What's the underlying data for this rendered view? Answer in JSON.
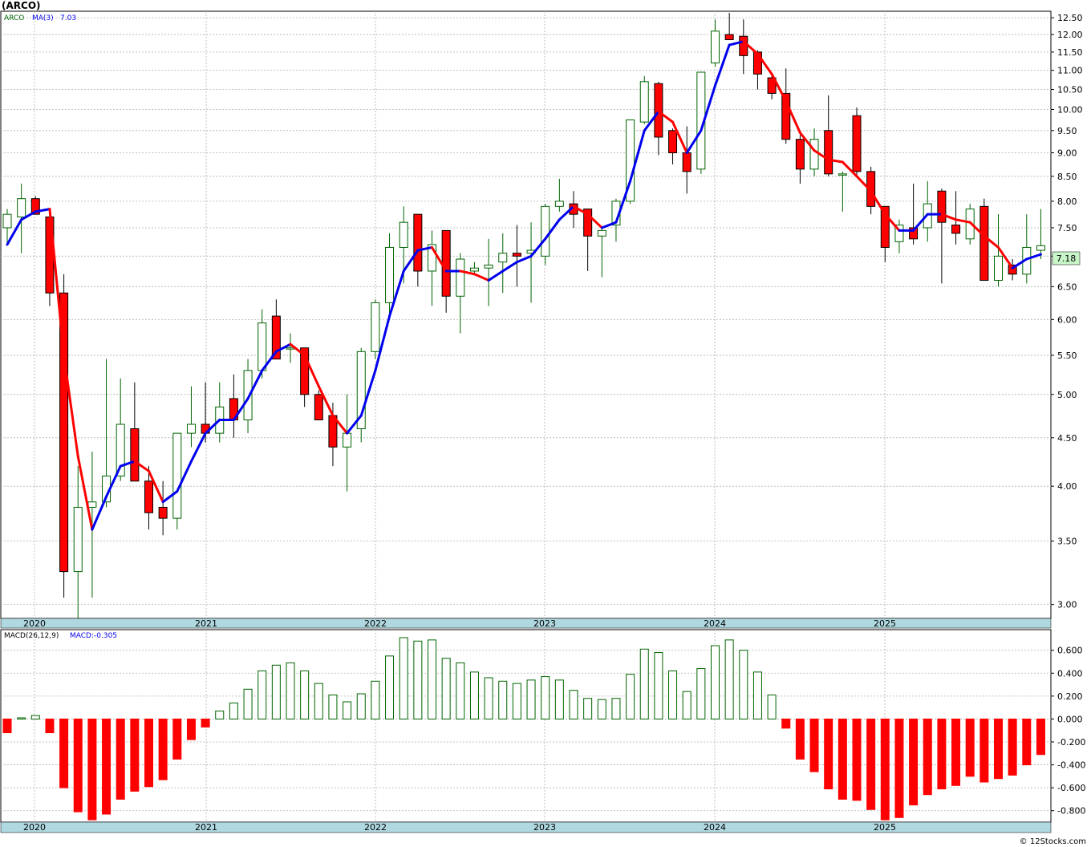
{
  "page": {
    "title": "(ARCO)",
    "footer": "© 12Stocks.com"
  },
  "colors": {
    "up": "#006400",
    "down": "#ff0000",
    "ma_up": "#0000ee",
    "ma_down": "#ff0000",
    "grid": "#b0b0b0",
    "axis_band": "#b0d8e0",
    "last_price_bg": "#c8f5c8"
  },
  "chart_data": [
    {
      "type": "candlestick",
      "ticker": "ARCO",
      "indicator_label": "MA(3)",
      "indicator_value": "7.03",
      "scale": "log",
      "ylim": [
        2.9,
        12.7
      ],
      "grid": true,
      "yticks": [
        "3.00",
        "3.50",
        "4.00",
        "4.50",
        "5.00",
        "5.50",
        "6.00",
        "6.50",
        "7.00",
        "7.50",
        "8.00",
        "8.50",
        "9.00",
        "9.50",
        "10.00",
        "10.50",
        "11.00",
        "11.50",
        "12.00",
        "12.50"
      ],
      "xticks": [
        "2020",
        "2021",
        "2022",
        "2023",
        "2024",
        "2025"
      ],
      "last_price": "7.18",
      "candles": [
        [
          7.5,
          7.85,
          7.2,
          7.75
        ],
        [
          7.7,
          8.35,
          7.05,
          8.05
        ],
        [
          8.05,
          8.1,
          7.75,
          7.75
        ],
        [
          7.7,
          7.8,
          6.2,
          6.4
        ],
        [
          6.4,
          6.7,
          3.05,
          3.25
        ],
        [
          3.25,
          4.2,
          2.9,
          3.8
        ],
        [
          3.8,
          4.35,
          3.05,
          3.85
        ],
        [
          3.85,
          5.45,
          3.8,
          4.1
        ],
        [
          4.1,
          5.2,
          4.05,
          4.65
        ],
        [
          4.6,
          5.15,
          4.05,
          4.05
        ],
        [
          4.05,
          4.2,
          3.6,
          3.75
        ],
        [
          3.8,
          4.05,
          3.55,
          3.7
        ],
        [
          3.7,
          4.55,
          3.6,
          4.55
        ],
        [
          4.55,
          5.1,
          4.4,
          4.65
        ],
        [
          4.65,
          5.15,
          4.45,
          4.55
        ],
        [
          4.55,
          5.15,
          4.45,
          4.85
        ],
        [
          4.95,
          5.25,
          4.5,
          4.7
        ],
        [
          4.7,
          5.45,
          4.55,
          5.3
        ],
        [
          5.3,
          6.15,
          5.2,
          5.95
        ],
        [
          6.05,
          6.3,
          5.45,
          5.45
        ],
        [
          5.6,
          5.8,
          5.4,
          5.6
        ],
        [
          5.6,
          5.6,
          4.85,
          5.0
        ],
        [
          5.0,
          5.05,
          4.7,
          4.7
        ],
        [
          4.75,
          4.9,
          4.2,
          4.4
        ],
        [
          4.4,
          5.0,
          3.95,
          4.55
        ],
        [
          4.6,
          5.6,
          4.45,
          5.55
        ],
        [
          5.55,
          6.3,
          5.45,
          6.25
        ],
        [
          6.25,
          7.4,
          6.05,
          7.15
        ],
        [
          7.15,
          7.9,
          6.55,
          7.6
        ],
        [
          7.75,
          7.75,
          6.5,
          6.75
        ],
        [
          6.75,
          7.45,
          6.2,
          7.2
        ],
        [
          7.45,
          7.45,
          6.1,
          6.35
        ],
        [
          6.35,
          7.05,
          5.8,
          6.95
        ],
        [
          6.75,
          6.9,
          6.7,
          6.8
        ],
        [
          6.8,
          7.3,
          6.2,
          6.85
        ],
        [
          6.9,
          7.4,
          6.4,
          7.05
        ],
        [
          7.05,
          7.55,
          6.5,
          7.0
        ],
        [
          7.05,
          7.6,
          6.25,
          7.1
        ],
        [
          7.0,
          7.95,
          6.85,
          7.9
        ],
        [
          7.9,
          8.45,
          7.8,
          8.0
        ],
        [
          7.95,
          8.2,
          7.5,
          7.75
        ],
        [
          7.85,
          7.85,
          6.75,
          7.35
        ],
        [
          7.35,
          7.5,
          6.65,
          7.45
        ],
        [
          7.55,
          8.05,
          7.25,
          8.0
        ],
        [
          8.0,
          9.75,
          7.95,
          9.75
        ],
        [
          9.7,
          10.85,
          9.65,
          10.7
        ],
        [
          10.65,
          10.7,
          8.95,
          9.35
        ],
        [
          9.5,
          9.55,
          8.75,
          9.0
        ],
        [
          9.0,
          9.6,
          8.15,
          8.6
        ],
        [
          8.65,
          10.95,
          8.55,
          10.95
        ],
        [
          11.2,
          12.45,
          11.1,
          12.1
        ],
        [
          12.0,
          12.65,
          11.9,
          11.85
        ],
        [
          11.95,
          12.45,
          10.9,
          11.4
        ],
        [
          11.5,
          11.55,
          10.5,
          10.9
        ],
        [
          10.8,
          10.85,
          10.25,
          10.4
        ],
        [
          10.4,
          11.05,
          9.2,
          9.3
        ],
        [
          9.3,
          9.4,
          8.35,
          8.65
        ],
        [
          8.65,
          9.55,
          8.5,
          9.3
        ],
        [
          9.5,
          10.35,
          8.5,
          8.55
        ],
        [
          8.55,
          8.6,
          7.8,
          8.55
        ],
        [
          9.85,
          10.05,
          8.5,
          8.6
        ],
        [
          8.6,
          8.7,
          7.75,
          7.9
        ],
        [
          7.9,
          7.9,
          6.9,
          7.15
        ],
        [
          7.25,
          7.65,
          7.05,
          7.55
        ],
        [
          7.5,
          8.35,
          7.2,
          7.3
        ],
        [
          7.5,
          8.4,
          7.25,
          7.95
        ],
        [
          8.2,
          8.25,
          6.55,
          7.6
        ],
        [
          7.55,
          8.2,
          7.2,
          7.4
        ],
        [
          7.3,
          7.95,
          7.2,
          7.85
        ],
        [
          7.9,
          8.05,
          6.6,
          6.6
        ],
        [
          6.6,
          7.75,
          6.5,
          7.0
        ],
        [
          6.85,
          6.95,
          6.6,
          6.7
        ],
        [
          6.7,
          7.75,
          6.55,
          7.15
        ],
        [
          7.1,
          7.85,
          6.95,
          7.18
        ]
      ],
      "ma": [
        7.2,
        7.65,
        7.8,
        7.85,
        5.5,
        4.3,
        3.6,
        3.9,
        4.2,
        4.25,
        4.15,
        3.85,
        3.95,
        4.25,
        4.55,
        4.7,
        4.7,
        4.95,
        5.3,
        5.55,
        5.65,
        5.5,
        5.1,
        4.75,
        4.55,
        4.75,
        5.3,
        6.05,
        6.75,
        7.1,
        7.15,
        6.75,
        6.75,
        6.7,
        6.6,
        6.75,
        6.9,
        7.0,
        7.3,
        7.65,
        7.9,
        7.75,
        7.5,
        7.6,
        8.4,
        9.5,
        9.95,
        9.7,
        9.0,
        9.5,
        10.6,
        11.7,
        11.8,
        11.45,
        10.9,
        10.2,
        9.45,
        9.05,
        8.85,
        8.8,
        8.5,
        8.2,
        7.75,
        7.45,
        7.45,
        7.75,
        7.75,
        7.65,
        7.6,
        7.35,
        7.15,
        6.8,
        6.95,
        7.03
      ]
    },
    {
      "type": "bar",
      "indicator_label": "MACD(26,12,9)",
      "value_label": "MACD:-0.305",
      "ylim": [
        -0.9,
        0.78
      ],
      "yticks": [
        "0.600",
        "0.400",
        "0.200",
        "0.000",
        "-0.200",
        "-0.400",
        "-0.600",
        "-0.800"
      ],
      "xticks": [
        "2020",
        "2021",
        "2022",
        "2023",
        "2024",
        "2025"
      ],
      "values": [
        -0.12,
        0.01,
        0.03,
        -0.12,
        -0.6,
        -0.81,
        -0.88,
        -0.83,
        -0.7,
        -0.63,
        -0.59,
        -0.53,
        -0.35,
        -0.18,
        -0.07,
        0.07,
        0.14,
        0.26,
        0.42,
        0.47,
        0.49,
        0.42,
        0.31,
        0.21,
        0.15,
        0.22,
        0.33,
        0.55,
        0.71,
        0.68,
        0.69,
        0.53,
        0.49,
        0.41,
        0.36,
        0.33,
        0.31,
        0.34,
        0.37,
        0.34,
        0.25,
        0.18,
        0.17,
        0.18,
        0.39,
        0.61,
        0.58,
        0.42,
        0.24,
        0.44,
        0.64,
        0.69,
        0.6,
        0.41,
        0.21,
        -0.08,
        -0.35,
        -0.46,
        -0.61,
        -0.7,
        -0.71,
        -0.79,
        -0.88,
        -0.86,
        -0.75,
        -0.66,
        -0.61,
        -0.58,
        -0.5,
        -0.55,
        -0.52,
        -0.49,
        -0.4,
        -0.31
      ]
    }
  ]
}
